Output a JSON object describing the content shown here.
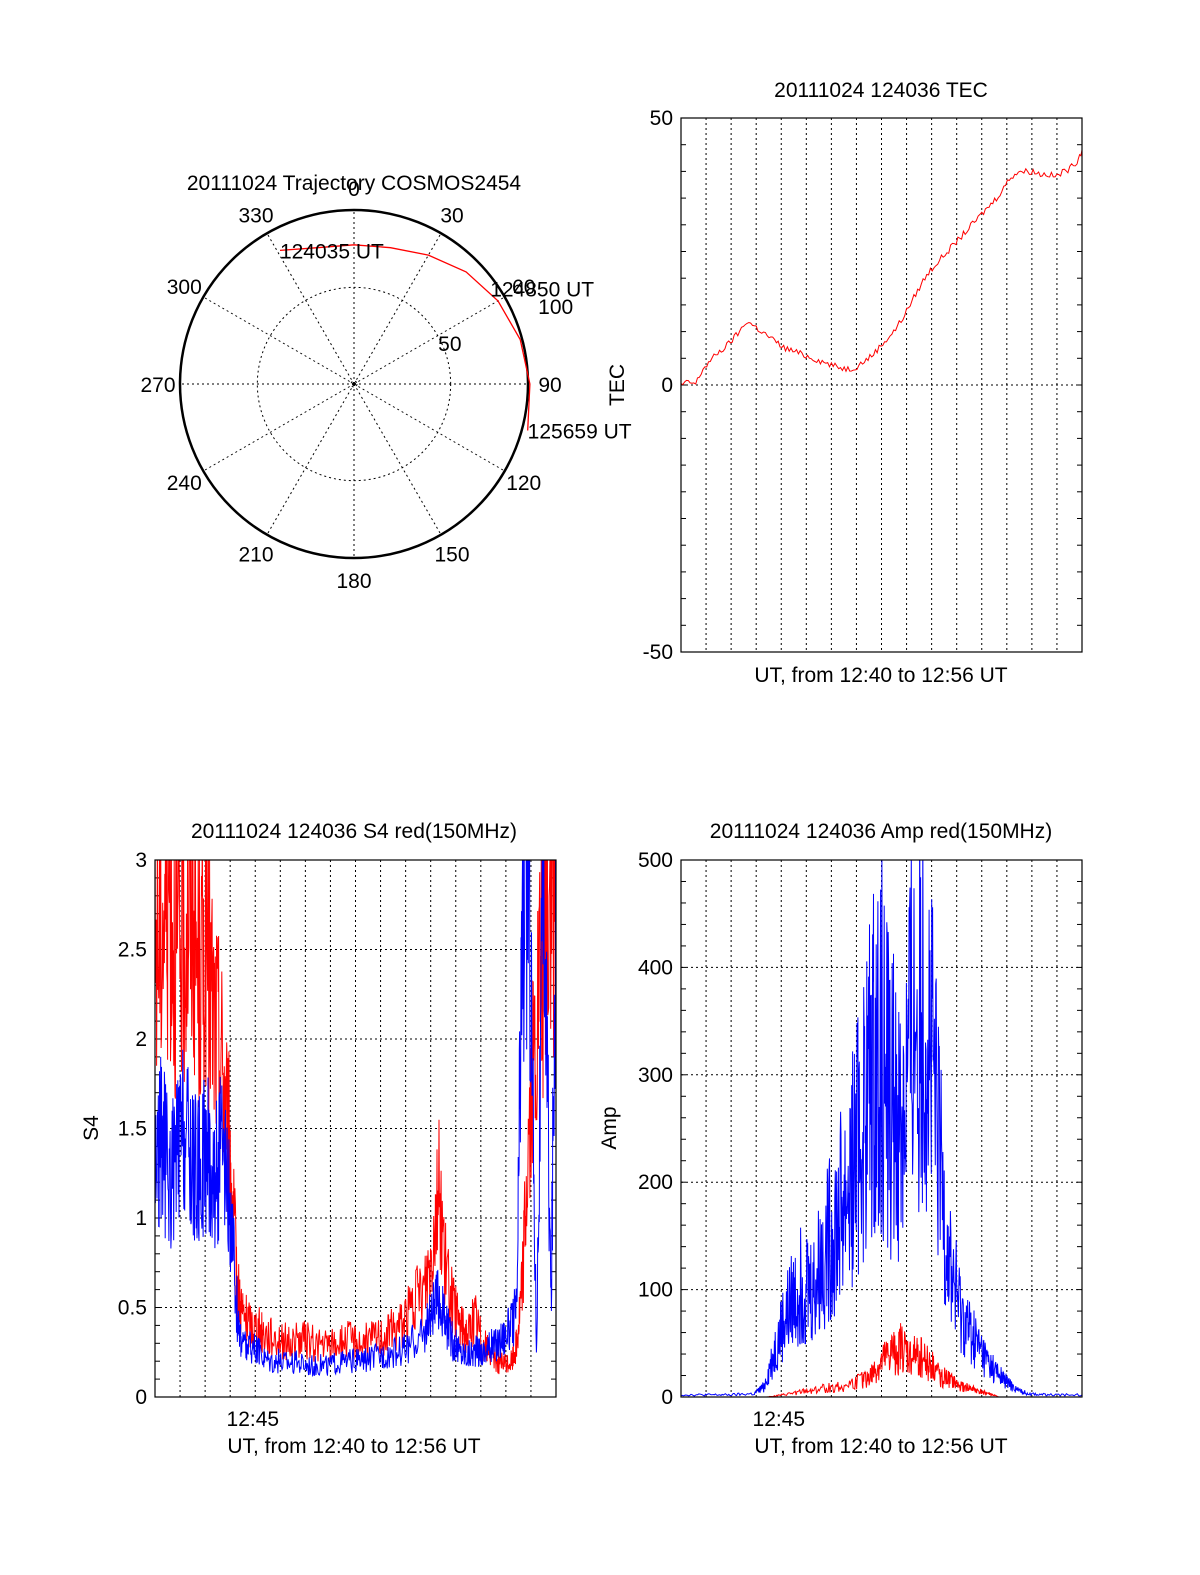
{
  "colors": {
    "red": "#ff0000",
    "blue": "#0000ff",
    "axis": "#000000"
  },
  "chart_data": [
    {
      "type": "polar",
      "title": "20111024 Trajectory COSMOS2454",
      "azimuth_labels": [
        "0",
        "30",
        "60",
        "90",
        "120",
        "150",
        "180",
        "210",
        "240",
        "270",
        "300",
        "330"
      ],
      "elevation_labels": [
        "50",
        "100"
      ],
      "series": [
        {
          "color": "#ff0000",
          "points": [
            {
              "az": 331,
              "zen": 79
            },
            {
              "az": 345,
              "zen": 73
            },
            {
              "az": 0,
              "zen": 72
            },
            {
              "az": 15,
              "zen": 73
            },
            {
              "az": 30,
              "zen": 77
            },
            {
              "az": 45,
              "zen": 82
            },
            {
              "az": 60,
              "zen": 86
            },
            {
              "az": 75,
              "zen": 89
            },
            {
              "az": 90,
              "zen": 91
            },
            {
              "az": 105,
              "zen": 93
            }
          ]
        }
      ],
      "annotations": [
        {
          "text": "124035 UT",
          "az": 331,
          "zen": 79
        },
        {
          "text": "124850 UT",
          "az": 55,
          "zen": 86
        },
        {
          "text": "125659 UT",
          "az": 105,
          "zen": 93
        }
      ]
    },
    {
      "type": "line",
      "title": "20111024 124036 TEC",
      "xlabel": "UT, from 12:40 to 12:56 UT",
      "ylabel": "TEC",
      "xlim": [
        0,
        16.4
      ],
      "ylim": [
        -50,
        50
      ],
      "yticks": [
        -50,
        0,
        50
      ],
      "series": [
        {
          "color": "#ff0000",
          "x": [
            0,
            0.3,
            0.6,
            0.9,
            1.2,
            1.5,
            1.8,
            2.1,
            2.4,
            2.7,
            3.0,
            3.3,
            3.6,
            3.9,
            4.2,
            4.5,
            4.8,
            5.1,
            5.4,
            5.7,
            6.0,
            6.3,
            6.6,
            6.9,
            7.2,
            7.5,
            7.8,
            8.1,
            8.4,
            8.7,
            9.0,
            9.3,
            9.6,
            9.9,
            10.2,
            10.5,
            10.8,
            11.1,
            11.4,
            11.7,
            12.0,
            12.3,
            12.6,
            12.9,
            13.2,
            13.5,
            13.8,
            14.1,
            14.4,
            14.7,
            15.0,
            15.3,
            15.6,
            15.9,
            16.2,
            16.4
          ],
          "y": [
            0,
            0.5,
            0.2,
            3,
            4.5,
            6,
            7,
            8.5,
            10,
            12,
            11,
            10,
            9,
            8,
            7,
            6.5,
            6,
            5.5,
            5,
            4.5,
            4,
            3.5,
            3.2,
            3,
            3.5,
            4.5,
            5.5,
            7,
            8.5,
            10,
            12,
            14.5,
            17,
            19.5,
            21.5,
            23,
            24.5,
            26,
            27.5,
            29,
            30.5,
            32,
            33.5,
            35,
            37,
            39,
            40,
            40,
            40,
            39.5,
            39.5,
            39,
            39.8,
            40.5,
            42,
            44
          ]
        }
      ]
    },
    {
      "type": "line",
      "title": "20111024 124036 S4 red(150MHz)",
      "xlabel": "UT, from 12:40 to 12:56 UT",
      "ylabel": "S4",
      "xlim": [
        0,
        16.4
      ],
      "ylim": [
        0,
        3
      ],
      "yticks": [
        0,
        0.5,
        1,
        1.5,
        2,
        2.5,
        3
      ],
      "ytick_labels": [
        "0",
        "0.5",
        "1",
        "1.5",
        "2",
        "2.5",
        "3"
      ],
      "xtick_labels": [
        {
          "x": 4,
          "text": "12:45"
        }
      ],
      "series": [
        {
          "color": "#ff0000",
          "x": [
            0,
            0.3,
            0.6,
            0.9,
            1.2,
            1.5,
            1.8,
            2.1,
            2.4,
            2.7,
            3.0,
            3.2,
            3.4,
            3.6,
            3.9,
            4.2,
            4.5,
            5.0,
            5.5,
            6.0,
            6.5,
            7.0,
            7.5,
            8.0,
            8.5,
            9.0,
            9.5,
            10.0,
            10.5,
            11.0,
            11.3,
            11.6,
            11.9,
            12.2,
            12.5,
            12.8,
            13.1,
            13.4,
            13.7,
            14.0,
            14.3,
            14.6,
            14.8,
            15.0,
            15.3,
            15.6,
            15.9,
            16.2,
            16.4
          ],
          "y": [
            2.5,
            2.7,
            2.9,
            2.4,
            2.6,
            2.8,
            2.3,
            2.5,
            2.1,
            1.9,
            1.5,
            1.0,
            0.6,
            0.45,
            0.4,
            0.38,
            0.35,
            0.33,
            0.3,
            0.32,
            0.3,
            0.28,
            0.3,
            0.32,
            0.3,
            0.33,
            0.35,
            0.4,
            0.5,
            0.6,
            0.8,
            1.2,
            0.7,
            0.5,
            0.4,
            0.35,
            0.45,
            0.3,
            0.25,
            0.2,
            0.18,
            0.2,
            0.3,
            0.6,
            1.5,
            2.0,
            2.5,
            2.8,
            2.9
          ]
        },
        {
          "color": "#0000ff",
          "x": [
            0,
            0.3,
            0.6,
            0.9,
            1.2,
            1.5,
            1.8,
            2.1,
            2.4,
            2.7,
            3.0,
            3.2,
            3.4,
            3.6,
            3.9,
            4.2,
            4.5,
            5.0,
            5.5,
            6.0,
            6.5,
            7.0,
            7.5,
            8.0,
            8.5,
            9.0,
            9.5,
            10.0,
            10.5,
            11.0,
            11.3,
            11.6,
            11.9,
            12.2,
            12.5,
            12.8,
            13.1,
            13.4,
            13.7,
            14.0,
            14.3,
            14.6,
            14.8,
            15.0,
            15.3,
            15.6,
            15.9,
            16.2,
            16.4
          ],
          "y": [
            1.3,
            1.45,
            1.2,
            1.35,
            1.5,
            1.3,
            1.25,
            1.4,
            1.2,
            1.35,
            1.1,
            0.8,
            0.4,
            0.3,
            0.28,
            0.25,
            0.22,
            0.2,
            0.2,
            0.19,
            0.18,
            0.18,
            0.19,
            0.2,
            0.2,
            0.22,
            0.24,
            0.25,
            0.3,
            0.35,
            0.45,
            0.55,
            0.4,
            0.3,
            0.25,
            0.24,
            0.26,
            0.25,
            0.28,
            0.3,
            0.35,
            0.4,
            0.5,
            2.5,
            3.0,
            0.3,
            3.0,
            0.5,
            3.0
          ]
        }
      ]
    },
    {
      "type": "line",
      "title": "20111024 124036 Amp red(150MHz)",
      "xlabel": "UT, from 12:40 to 12:56 UT",
      "ylabel": "Amp",
      "xlim": [
        0,
        16.4
      ],
      "ylim": [
        0,
        500
      ],
      "yticks": [
        0,
        100,
        200,
        300,
        400,
        500
      ],
      "xtick_labels": [
        {
          "x": 4,
          "text": "12:45"
        }
      ],
      "series": [
        {
          "color": "#0000ff",
          "x": [
            0,
            1,
            2,
            3,
            3.4,
            3.8,
            4.2,
            4.6,
            5.0,
            5.4,
            5.8,
            6.2,
            6.6,
            7.0,
            7.4,
            7.8,
            8.2,
            8.6,
            9.0,
            9.4,
            9.8,
            10.2,
            10.6,
            11.0,
            11.4,
            11.8,
            12.2,
            12.6,
            13.0,
            13.4,
            13.8,
            14.2,
            15,
            16.4
          ],
          "y": [
            2,
            2,
            2,
            3,
            10,
            40,
            70,
            90,
            110,
            100,
            130,
            150,
            180,
            210,
            250,
            300,
            330,
            280,
            250,
            330,
            380,
            320,
            210,
            120,
            80,
            60,
            45,
            30,
            20,
            12,
            6,
            3,
            2,
            2
          ]
        },
        {
          "color": "#ff0000",
          "x": [
            0,
            3.5,
            4.2,
            5.0,
            5.8,
            6.6,
            7.4,
            7.8,
            8.2,
            8.6,
            9.0,
            9.4,
            9.8,
            10.2,
            10.6,
            11.0,
            11.4,
            11.8,
            12.2,
            12.6,
            13.0,
            16.4
          ],
          "y": [
            0,
            0,
            2,
            5,
            8,
            10,
            15,
            20,
            30,
            40,
            45,
            35,
            40,
            30,
            20,
            15,
            10,
            8,
            5,
            3,
            0,
            0
          ]
        }
      ]
    }
  ]
}
